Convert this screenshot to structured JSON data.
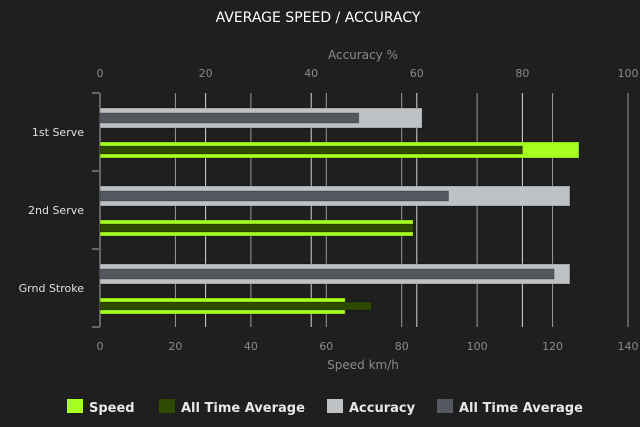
{
  "chart_data": {
    "type": "bar",
    "orientation": "horizontal",
    "title": "AVERAGE SPEED / ACCURACY",
    "categories": [
      "1st Serve",
      "2nd Serve",
      "Grnd Stroke"
    ],
    "top_axis": {
      "label": "Accuracy %",
      "range": [
        0,
        100
      ],
      "ticks": [
        0,
        20,
        40,
        60,
        80,
        100
      ]
    },
    "bottom_axis": {
      "label": "Speed km/h",
      "range": [
        0,
        140
      ],
      "ticks": [
        0,
        20,
        40,
        60,
        80,
        100,
        120,
        140
      ]
    },
    "grid": true,
    "legend_position": "bottom",
    "series": [
      {
        "name": "Speed",
        "axis": "speed",
        "color": "#a8ff22",
        "values": [
          127,
          83,
          65
        ]
      },
      {
        "name": "All Time Average",
        "axis": "speed",
        "color": "#2e4a00",
        "values": [
          112,
          83,
          72
        ]
      },
      {
        "name": "Accuracy",
        "axis": "accuracy",
        "color": "#bec2c4",
        "values": [
          61,
          89,
          89
        ]
      },
      {
        "name": "All Time Average",
        "axis": "accuracy",
        "color": "#545960",
        "values": [
          49,
          66,
          86
        ]
      }
    ]
  }
}
